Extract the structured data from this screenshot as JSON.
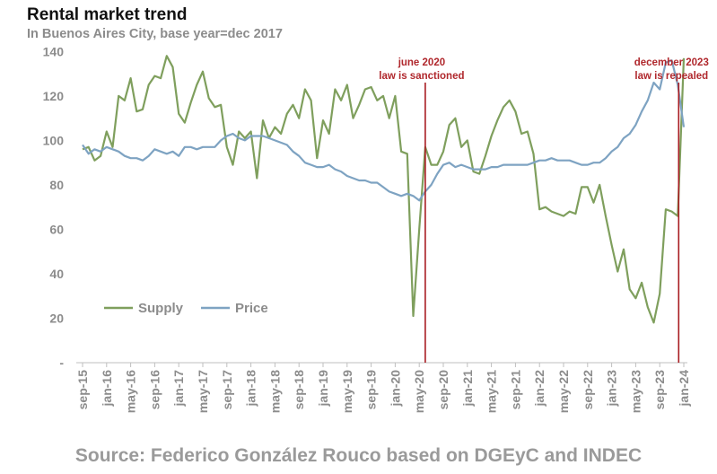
{
  "header": {
    "title": "Rental market trend",
    "subtitle": "In Buenos Aires City, base year=dec 2017"
  },
  "footer": {
    "source": "Source: Federico González Rouco based on DGEyC and INDEC"
  },
  "colors": {
    "supply": "#7f9f5d",
    "price": "#7ea3c2",
    "marker": "#a81c22",
    "axis": "#bfbfbf",
    "text": "#8c8c8c"
  },
  "chart_data": {
    "type": "line",
    "title": "Rental market trend",
    "subtitle": "In Buenos Aires City, base year=dec 2017",
    "ylim": [
      0,
      145
    ],
    "yticks": [
      "-",
      "20",
      "40",
      "60",
      "80",
      "100",
      "120",
      "140"
    ],
    "ytick_values": [
      0,
      20,
      40,
      60,
      80,
      100,
      120,
      140
    ],
    "x_start": "sep-15",
    "x_labels": [
      "sep-15",
      "jan-16",
      "may-16",
      "sep-16",
      "jan-17",
      "may-17",
      "sep-17",
      "jan-18",
      "may-18",
      "sep-18",
      "jan-19",
      "may-19",
      "sep-19",
      "jan-20",
      "may-20",
      "sep-20",
      "jan-21",
      "may-21",
      "sep-21",
      "jan-22",
      "may-22",
      "sep-22",
      "jan-23",
      "may-23",
      "sep-23",
      "jan-24"
    ],
    "legend": [
      {
        "name": "Supply",
        "color": "#7f9f5d"
      },
      {
        "name": "Price",
        "color": "#7ea3c2"
      }
    ],
    "series": [
      {
        "name": "Supply",
        "color": "#7f9f5d",
        "values": [
          96,
          97,
          91,
          93,
          104,
          97,
          120,
          118,
          128,
          113,
          114,
          125,
          129,
          128,
          138,
          133,
          112,
          108,
          117,
          125,
          131,
          119,
          115,
          116,
          97,
          89,
          104,
          101,
          104,
          83,
          109,
          101,
          106,
          103,
          112,
          116,
          110,
          123,
          118,
          92,
          109,
          103,
          123,
          118,
          125,
          110,
          116,
          123,
          124,
          118,
          120,
          110,
          120,
          95,
          94,
          21,
          60,
          97,
          89,
          89,
          95,
          107,
          110,
          97,
          100,
          86,
          85,
          93,
          102,
          109,
          115,
          118,
          113,
          103,
          104,
          94,
          69,
          70,
          68,
          67,
          66,
          68,
          67,
          79,
          79,
          72,
          80,
          66,
          53,
          41,
          51,
          33,
          29,
          36,
          25,
          18,
          31,
          69,
          68,
          66,
          137
        ]
      },
      {
        "name": "Price",
        "color": "#7ea3c2",
        "values": [
          98,
          94,
          96,
          95,
          97,
          96,
          95,
          93,
          92,
          92,
          91,
          93,
          96,
          95,
          94,
          95,
          93,
          97,
          97,
          96,
          97,
          97,
          97,
          100,
          102,
          103,
          101,
          100,
          102,
          102,
          102,
          101,
          100,
          99,
          98,
          95,
          93,
          90,
          89,
          88,
          88,
          89,
          87,
          86,
          84,
          83,
          82,
          82,
          81,
          81,
          79,
          77,
          76,
          75,
          76,
          75,
          73,
          77,
          80,
          85,
          89,
          90,
          88,
          89,
          88,
          87,
          87,
          87,
          88,
          88,
          89,
          89,
          89,
          89,
          89,
          90,
          91,
          91,
          92,
          91,
          91,
          91,
          90,
          89,
          89,
          90,
          90,
          92,
          95,
          97,
          101,
          103,
          107,
          113,
          118,
          126,
          123,
          135,
          136,
          125,
          106
        ]
      }
    ],
    "annotations": [
      {
        "date": "jun-20",
        "index": 57,
        "line1": "june 2020",
        "line2": "law is sanctioned"
      },
      {
        "date": "dec-23",
        "index": 99,
        "line1": "december 2023",
        "line2": "law is repealed"
      }
    ],
    "grid": false
  }
}
